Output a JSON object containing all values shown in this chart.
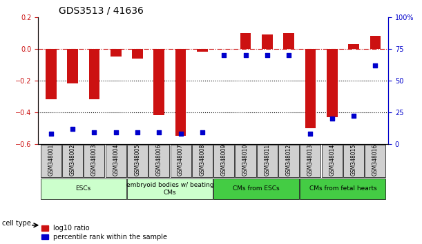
{
  "title": "GDS3513 / 41636",
  "samples": [
    "GSM348001",
    "GSM348002",
    "GSM348003",
    "GSM348004",
    "GSM348005",
    "GSM348006",
    "GSM348007",
    "GSM348008",
    "GSM348009",
    "GSM348010",
    "GSM348011",
    "GSM348012",
    "GSM348013",
    "GSM348014",
    "GSM348015",
    "GSM348016"
  ],
  "log10_ratio": [
    -0.32,
    -0.22,
    -0.32,
    -0.05,
    -0.06,
    -0.42,
    -0.55,
    -0.02,
    0.0,
    0.1,
    0.09,
    0.1,
    -0.5,
    -0.43,
    0.03,
    0.08
  ],
  "percentile_rank": [
    8,
    12,
    9,
    9,
    9,
    9,
    8,
    9,
    70,
    70,
    70,
    70,
    8,
    20,
    22,
    62
  ],
  "cell_type_groups": [
    {
      "label": "ESCs",
      "start": 0,
      "end": 3,
      "color": "#ccffcc"
    },
    {
      "label": "embryoid bodies w/ beating\nCMs",
      "start": 4,
      "end": 7,
      "color": "#ccffcc"
    },
    {
      "label": "CMs from ESCs",
      "start": 8,
      "end": 11,
      "color": "#44cc44"
    },
    {
      "label": "CMs from fetal hearts",
      "start": 12,
      "end": 15,
      "color": "#44cc44"
    }
  ],
  "bar_color": "#cc1111",
  "dot_color": "#0000cc",
  "ylim_left": [
    -0.6,
    0.2
  ],
  "ylim_right": [
    0,
    100
  ],
  "yticks_left": [
    -0.6,
    -0.4,
    -0.2,
    0.0,
    0.2
  ],
  "yticks_right": [
    0,
    25,
    50,
    75,
    100
  ],
  "ytick_labels_right": [
    "0",
    "25",
    "50",
    "75",
    "100%"
  ],
  "hline_y": 0.0,
  "dotted_lines": [
    -0.2,
    -0.4
  ],
  "legend_labels": [
    "log10 ratio",
    "percentile rank within the sample"
  ]
}
